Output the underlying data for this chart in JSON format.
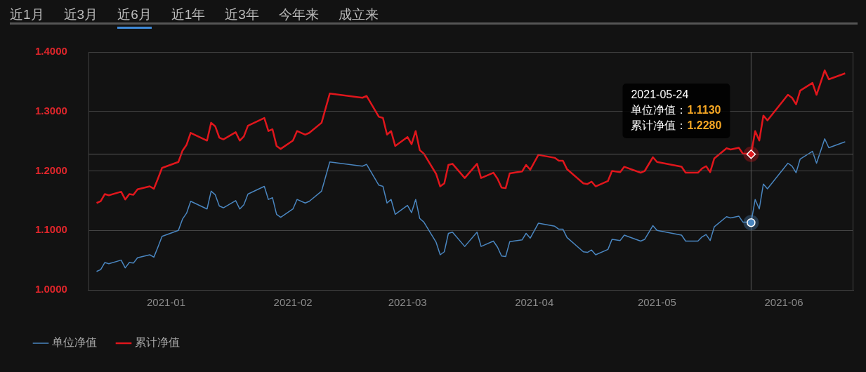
{
  "chart_data": {
    "type": "line",
    "annotations": [
      "近1月",
      "近3月",
      "近6月",
      "近1年",
      "近3年",
      "今年来",
      "成立来",
      "2021-05-24\n单位净值：1.1130\n累计净值：1.2280"
    ],
    "x": [
      "2020-12-15",
      "2020-12-16",
      "2020-12-17",
      "2020-12-18",
      "2020-12-21",
      "2020-12-22",
      "2020-12-23",
      "2020-12-24",
      "2020-12-25",
      "2020-12-28",
      "2020-12-29",
      "2020-12-30",
      "2020-12-31",
      "2021-01-04",
      "2021-01-05",
      "2021-01-06",
      "2021-01-07",
      "2021-01-11",
      "2021-01-12",
      "2021-01-13",
      "2021-01-14",
      "2021-01-15",
      "2021-01-18",
      "2021-01-19",
      "2021-01-20",
      "2021-01-21",
      "2021-01-25",
      "2021-01-26",
      "2021-01-27",
      "2021-01-28",
      "2021-01-29",
      "2021-02-01",
      "2021-02-02",
      "2021-02-04",
      "2021-02-05",
      "2021-02-08",
      "2021-02-10",
      "2021-02-18",
      "2021-02-19",
      "2021-02-22",
      "2021-02-23",
      "2021-02-24",
      "2021-02-25",
      "2021-02-26",
      "2021-03-01",
      "2021-03-02",
      "2021-03-03",
      "2021-03-04",
      "2021-03-05",
      "2021-03-08",
      "2021-03-09",
      "2021-03-10",
      "2021-03-11",
      "2021-03-12",
      "2021-03-15",
      "2021-03-18",
      "2021-03-19",
      "2021-03-22",
      "2021-03-23",
      "2021-03-24",
      "2021-03-25",
      "2021-03-26",
      "2021-03-29",
      "2021-03-30",
      "2021-03-31",
      "2021-04-02",
      "2021-04-06",
      "2021-04-07",
      "2021-04-08",
      "2021-04-09",
      "2021-04-13",
      "2021-04-14",
      "2021-04-15",
      "2021-04-16",
      "2021-04-19",
      "2021-04-20",
      "2021-04-22",
      "2021-04-23",
      "2021-04-27",
      "2021-04-28",
      "2021-04-30",
      "2021-05-01",
      "2021-05-07",
      "2021-05-08",
      "2021-05-11",
      "2021-05-12",
      "2021-05-13",
      "2021-05-14",
      "2021-05-15",
      "2021-05-18",
      "2021-05-19",
      "2021-05-21",
      "2021-05-22",
      "2021-05-23",
      "2021-05-24",
      "2021-05-25",
      "2021-05-26",
      "2021-05-27",
      "2021-05-28",
      "2021-06-02",
      "2021-06-03",
      "2021-06-04",
      "2021-06-05",
      "2021-06-08",
      "2021-06-09",
      "2021-06-11",
      "2021-06-12",
      "2021-06-16"
    ],
    "series": [
      {
        "name": "单位净值",
        "color": "#4a86c0",
        "values": [
          1.031,
          1.034,
          1.046,
          1.044,
          1.05,
          1.037,
          1.046,
          1.045,
          1.054,
          1.059,
          1.055,
          1.072,
          1.09,
          1.1,
          1.119,
          1.129,
          1.149,
          1.136,
          1.166,
          1.16,
          1.141,
          1.138,
          1.15,
          1.136,
          1.143,
          1.161,
          1.174,
          1.152,
          1.155,
          1.127,
          1.122,
          1.136,
          1.152,
          1.146,
          1.149,
          1.166,
          1.215,
          1.208,
          1.211,
          1.176,
          1.174,
          1.146,
          1.152,
          1.127,
          1.142,
          1.13,
          1.152,
          1.12,
          1.114,
          1.08,
          1.059,
          1.064,
          1.095,
          1.097,
          1.073,
          1.097,
          1.073,
          1.082,
          1.072,
          1.057,
          1.056,
          1.081,
          1.084,
          1.095,
          1.087,
          1.112,
          1.107,
          1.102,
          1.102,
          1.088,
          1.064,
          1.063,
          1.067,
          1.059,
          1.068,
          1.085,
          1.083,
          1.092,
          1.082,
          1.085,
          1.108,
          1.1,
          1.092,
          1.082,
          1.082,
          1.089,
          1.093,
          1.083,
          1.106,
          1.123,
          1.121,
          1.124,
          1.114,
          1.114,
          1.113,
          1.152,
          1.136,
          1.178,
          1.17,
          1.213,
          1.208,
          1.197,
          1.22,
          1.233,
          1.213,
          1.254,
          1.239,
          1.249
        ]
      },
      {
        "name": "累计净值",
        "color": "#e0161c",
        "values": [
          1.146,
          1.149,
          1.161,
          1.159,
          1.165,
          1.152,
          1.161,
          1.16,
          1.169,
          1.174,
          1.17,
          1.187,
          1.205,
          1.215,
          1.234,
          1.244,
          1.264,
          1.251,
          1.281,
          1.275,
          1.256,
          1.253,
          1.265,
          1.251,
          1.258,
          1.276,
          1.289,
          1.267,
          1.27,
          1.242,
          1.237,
          1.251,
          1.267,
          1.261,
          1.264,
          1.281,
          1.33,
          1.323,
          1.326,
          1.291,
          1.289,
          1.261,
          1.267,
          1.242,
          1.257,
          1.245,
          1.267,
          1.235,
          1.229,
          1.195,
          1.174,
          1.179,
          1.21,
          1.212,
          1.188,
          1.212,
          1.188,
          1.197,
          1.187,
          1.172,
          1.171,
          1.196,
          1.199,
          1.21,
          1.202,
          1.227,
          1.222,
          1.217,
          1.217,
          1.203,
          1.179,
          1.178,
          1.182,
          1.174,
          1.183,
          1.2,
          1.198,
          1.207,
          1.197,
          1.2,
          1.223,
          1.215,
          1.207,
          1.197,
          1.197,
          1.204,
          1.208,
          1.198,
          1.221,
          1.238,
          1.236,
          1.239,
          1.229,
          1.229,
          1.228,
          1.267,
          1.251,
          1.293,
          1.285,
          1.328,
          1.323,
          1.312,
          1.335,
          1.348,
          1.328,
          1.369,
          1.354,
          1.364
        ]
      }
    ],
    "xlim": [
      "2020-12-13",
      "2021-06-18"
    ],
    "xticks": [
      "2021-01",
      "2021-02",
      "2021-03",
      "2021-04",
      "2021-05",
      "2021-06"
    ],
    "ylim": [
      1.0,
      1.4
    ],
    "yticks": [
      {
        "value": 1.0,
        "label": "1.0000"
      },
      {
        "value": 1.1,
        "label": "1.1000"
      },
      {
        "value": 1.2,
        "label": "1.2000"
      },
      {
        "value": 1.3,
        "label": "1.3000"
      },
      {
        "value": 1.4,
        "label": "1.4000"
      }
    ],
    "ref_lines": [
      {
        "axis": "x",
        "value": "2021-05-24",
        "color": "#555555"
      },
      {
        "axis": "y",
        "value": 1.228,
        "color": "#555555"
      }
    ],
    "grid": "y",
    "legend": "bottom left",
    "marker": "none",
    "line_style": "solid"
  }
}
